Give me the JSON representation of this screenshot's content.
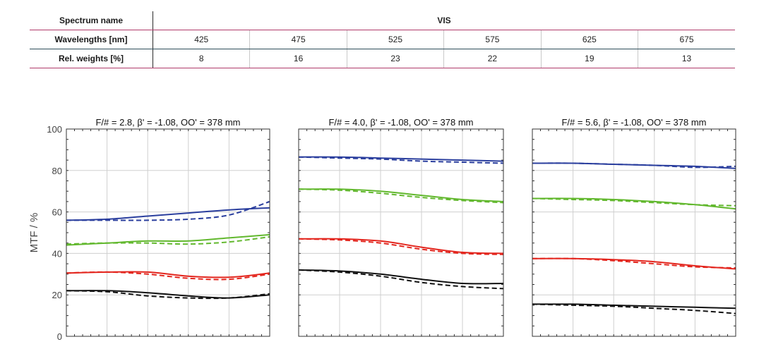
{
  "spectrum_table": {
    "headers": {
      "spectrum_name": "Spectrum name",
      "wavelengths": "Wavelengths [nm]",
      "rel_weights": "Rel. weights [%]"
    },
    "spectrum_value": "VIS",
    "wavelengths": [
      "425",
      "475",
      "525",
      "575",
      "625",
      "675"
    ],
    "weights": [
      "8",
      "16",
      "23",
      "22",
      "19",
      "13"
    ]
  },
  "chart_data": [
    {
      "type": "line",
      "title": "F/# = 2.8, β' = -1.08, OO' = 378 mm",
      "ylabel": "MTF / %",
      "ylim": [
        0,
        100
      ],
      "yticks": [
        "0",
        "20",
        "40",
        "60",
        "80",
        "100"
      ],
      "xlim": [
        0,
        1
      ],
      "grid": true,
      "series": [
        {
          "color": "#2b3f9e",
          "style": "solid",
          "x": [
            0,
            0.2,
            0.4,
            0.6,
            0.8,
            1
          ],
          "y": [
            56,
            56.5,
            58,
            59.5,
            61,
            62
          ]
        },
        {
          "color": "#2b3f9e",
          "style": "dashed",
          "x": [
            0,
            0.2,
            0.4,
            0.6,
            0.8,
            1
          ],
          "y": [
            56,
            56,
            56,
            56.5,
            58.5,
            65
          ]
        },
        {
          "color": "#62b82e",
          "style": "solid",
          "x": [
            0,
            0.2,
            0.4,
            0.6,
            0.8,
            1
          ],
          "y": [
            44,
            45,
            46,
            46,
            47.5,
            49
          ]
        },
        {
          "color": "#62b82e",
          "style": "dashed",
          "x": [
            0,
            0.2,
            0.4,
            0.6,
            0.8,
            1
          ],
          "y": [
            44.5,
            45,
            45,
            44.5,
            45.5,
            48
          ]
        },
        {
          "color": "#e3261e",
          "style": "solid",
          "x": [
            0,
            0.2,
            0.4,
            0.6,
            0.8,
            1
          ],
          "y": [
            30.5,
            31,
            31,
            29,
            28.5,
            30.5
          ]
        },
        {
          "color": "#e3261e",
          "style": "dashed",
          "x": [
            0,
            0.2,
            0.4,
            0.6,
            0.8,
            1
          ],
          "y": [
            30.5,
            31,
            30,
            28,
            27.5,
            30
          ]
        },
        {
          "color": "#111111",
          "style": "solid",
          "x": [
            0,
            0.2,
            0.4,
            0.6,
            0.8,
            1
          ],
          "y": [
            22,
            22,
            21,
            19.5,
            18.5,
            20
          ]
        },
        {
          "color": "#111111",
          "style": "dashed",
          "x": [
            0,
            0.2,
            0.4,
            0.6,
            0.8,
            1
          ],
          "y": [
            22,
            21.5,
            19.5,
            18.5,
            18.5,
            20.5
          ]
        }
      ]
    },
    {
      "type": "line",
      "title": "F/# = 4.0, β' = -1.08, OO' = 378 mm",
      "ylim": [
        0,
        100
      ],
      "xlim": [
        0,
        1
      ],
      "grid": true,
      "series": [
        {
          "color": "#2b3f9e",
          "style": "solid",
          "x": [
            0,
            0.2,
            0.4,
            0.6,
            0.8,
            1
          ],
          "y": [
            86.5,
            86.5,
            86,
            85.5,
            85,
            84.5
          ]
        },
        {
          "color": "#2b3f9e",
          "style": "dashed",
          "x": [
            0,
            0.2,
            0.4,
            0.6,
            0.8,
            1
          ],
          "y": [
            86.5,
            86,
            85.5,
            84.5,
            84,
            83.5
          ]
        },
        {
          "color": "#62b82e",
          "style": "solid",
          "x": [
            0,
            0.2,
            0.4,
            0.6,
            0.8,
            1
          ],
          "y": [
            71,
            71,
            70,
            68,
            66,
            65
          ]
        },
        {
          "color": "#62b82e",
          "style": "dashed",
          "x": [
            0,
            0.2,
            0.4,
            0.6,
            0.8,
            1
          ],
          "y": [
            71,
            70.5,
            69,
            67,
            65.5,
            64.5
          ]
        },
        {
          "color": "#e3261e",
          "style": "solid",
          "x": [
            0,
            0.2,
            0.4,
            0.6,
            0.8,
            1
          ],
          "y": [
            47,
            47,
            46,
            43,
            40.5,
            40
          ]
        },
        {
          "color": "#e3261e",
          "style": "dashed",
          "x": [
            0,
            0.2,
            0.4,
            0.6,
            0.8,
            1
          ],
          "y": [
            47,
            46.5,
            45,
            42,
            40,
            39.5
          ]
        },
        {
          "color": "#111111",
          "style": "solid",
          "x": [
            0,
            0.2,
            0.4,
            0.6,
            0.8,
            1
          ],
          "y": [
            32,
            31.5,
            30,
            27.5,
            25.5,
            25.5
          ]
        },
        {
          "color": "#111111",
          "style": "dashed",
          "x": [
            0,
            0.2,
            0.4,
            0.6,
            0.8,
            1
          ],
          "y": [
            32,
            31,
            29,
            26,
            24,
            23
          ]
        }
      ]
    },
    {
      "type": "line",
      "title": "F/# = 5.6, β' = -1.08, OO' = 378 mm",
      "ylim": [
        0,
        100
      ],
      "xlim": [
        0,
        1
      ],
      "grid": true,
      "series": [
        {
          "color": "#2b3f9e",
          "style": "solid",
          "x": [
            0,
            0.2,
            0.4,
            0.6,
            0.8,
            1
          ],
          "y": [
            83.5,
            83.5,
            83,
            82.5,
            82,
            81
          ]
        },
        {
          "color": "#2b3f9e",
          "style": "dashed",
          "x": [
            0,
            0.2,
            0.4,
            0.6,
            0.8,
            1
          ],
          "y": [
            83.5,
            83.5,
            83,
            82.5,
            81.5,
            82
          ]
        },
        {
          "color": "#62b82e",
          "style": "solid",
          "x": [
            0,
            0.2,
            0.4,
            0.6,
            0.8,
            1
          ],
          "y": [
            66.5,
            66.5,
            66,
            65,
            63.5,
            61.5
          ]
        },
        {
          "color": "#62b82e",
          "style": "dashed",
          "x": [
            0,
            0.2,
            0.4,
            0.6,
            0.8,
            1
          ],
          "y": [
            66.5,
            66,
            65.5,
            64.5,
            63.5,
            63
          ]
        },
        {
          "color": "#e3261e",
          "style": "solid",
          "x": [
            0,
            0.2,
            0.4,
            0.6,
            0.8,
            1
          ],
          "y": [
            37.5,
            37.5,
            37,
            36,
            34,
            32.5
          ]
        },
        {
          "color": "#e3261e",
          "style": "dashed",
          "x": [
            0,
            0.2,
            0.4,
            0.6,
            0.8,
            1
          ],
          "y": [
            37.5,
            37.5,
            36.5,
            35,
            33.5,
            33
          ]
        },
        {
          "color": "#111111",
          "style": "solid",
          "x": [
            0,
            0.2,
            0.4,
            0.6,
            0.8,
            1
          ],
          "y": [
            15.5,
            15.5,
            15,
            14.5,
            14,
            13.5
          ]
        },
        {
          "color": "#111111",
          "style": "dashed",
          "x": [
            0,
            0.2,
            0.4,
            0.6,
            0.8,
            1
          ],
          "y": [
            15.5,
            15,
            14.5,
            13.5,
            12.5,
            11
          ]
        }
      ]
    }
  ]
}
